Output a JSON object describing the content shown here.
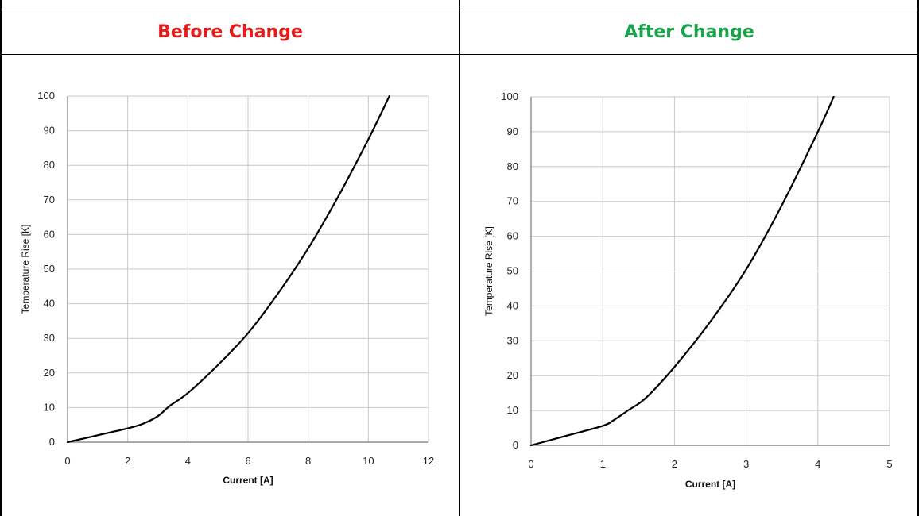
{
  "headers": {
    "before": "Before Change",
    "after": "After Change",
    "before_color": "#e31c1c",
    "after_color": "#1aa34a"
  },
  "chart_data": [
    {
      "type": "line",
      "panel": "before",
      "xlabel": "Current [A]",
      "ylabel": "Temperature Rise [K]",
      "xlim": [
        0,
        12
      ],
      "ylim": [
        0,
        100
      ],
      "xticks": [
        0,
        2,
        4,
        6,
        8,
        10,
        12
      ],
      "yticks": [
        0,
        10,
        20,
        30,
        40,
        50,
        60,
        70,
        80,
        90,
        100
      ],
      "grid": true,
      "series": [
        {
          "x": [
            0,
            1,
            2,
            2.5,
            3,
            3.4,
            4,
            5,
            6,
            7,
            8,
            9,
            10,
            10.7
          ],
          "y": [
            0,
            2,
            4,
            5.3,
            7.5,
            10.5,
            14.2,
            22.3,
            31.5,
            43,
            56,
            71,
            87.5,
            100
          ]
        }
      ]
    },
    {
      "type": "line",
      "panel": "after",
      "xlabel": "Current [A]",
      "ylabel": "Temperature Rise [K]",
      "xlim": [
        0,
        5
      ],
      "ylim": [
        0,
        100
      ],
      "xticks": [
        0,
        1,
        2,
        3,
        4,
        5
      ],
      "yticks": [
        0,
        10,
        20,
        30,
        40,
        50,
        60,
        70,
        80,
        90,
        100
      ],
      "grid": true,
      "series": [
        {
          "x": [
            0,
            0.5,
            1,
            1.15,
            1.35,
            1.6,
            2,
            2.5,
            3,
            3.5,
            4,
            4.22
          ],
          "y": [
            0,
            2.8,
            5.6,
            7.2,
            10,
            13.6,
            22.5,
            35.5,
            50.5,
            69,
            90,
            100
          ]
        }
      ]
    }
  ]
}
